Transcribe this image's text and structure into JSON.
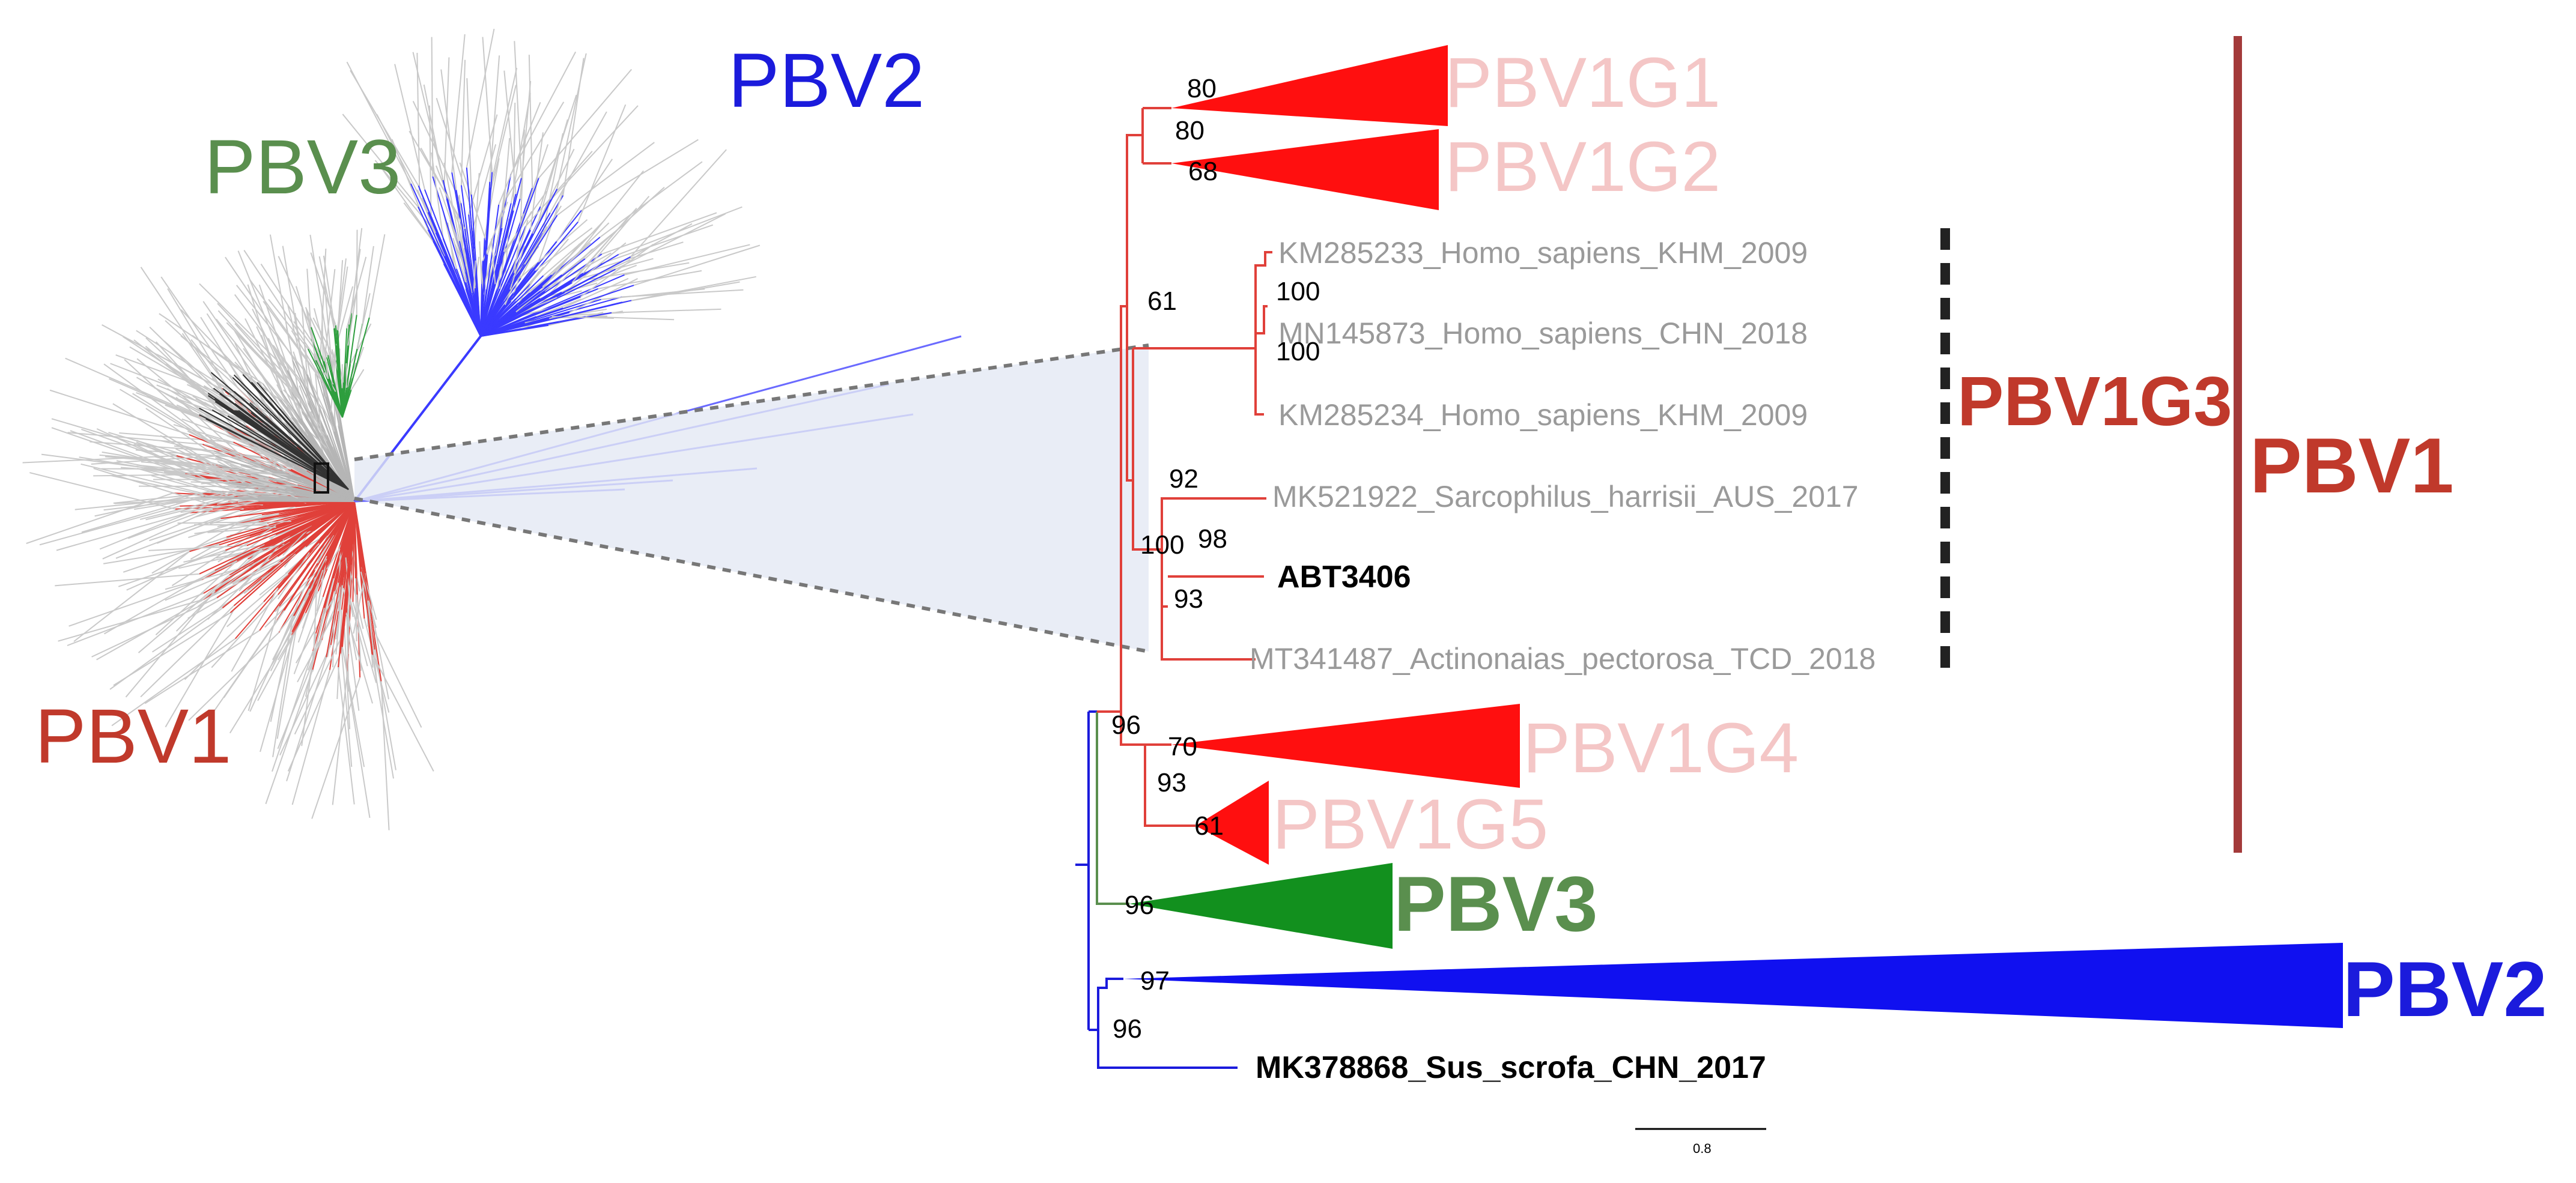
{
  "colors": {
    "pbv1": "#c0392b",
    "pbv1_branch": "#e0403a",
    "pbv2": "#1b1bdc",
    "pbv3": "#5a8f4e",
    "pbv3_fill": "#12901e",
    "pbv1_fill": "#ff0f0f",
    "light_label": "#f4c6c6",
    "grey_tip": "#9a9a9a",
    "black": "#000000"
  },
  "overview": {
    "labels": {
      "pbv1": "PBV1",
      "pbv2": "PBV2",
      "pbv3": "PBV3"
    }
  },
  "tree": {
    "collapsed_clades": {
      "pbv1g1": "PBV1G1",
      "pbv1g2": "PBV1G2",
      "pbv1g4": "PBV1G4",
      "pbv1g5": "PBV1G5",
      "pbv3": "PBV3",
      "pbv2": "PBV2"
    },
    "tips": {
      "km285233": "KM285233_Homo_sapiens_KHM_2009",
      "mn145873": "MN145873_Homo_sapiens_CHN_2018",
      "km285234": "KM285234_Homo_sapiens_KHM_2009",
      "mk521922": "MK521922_Sarcophilus_harrisii_AUS_2017",
      "abt3406": "ABT3406",
      "mt341487": "MT341487_Actinonaias_pectorosa_TCD_2018",
      "mk378868": "MK378868_Sus_scrofa_CHN_2017"
    },
    "support": {
      "g1": "80",
      "g1g2": "80",
      "g2": "68",
      "n61": "61",
      "n100a": "100",
      "n100b": "100",
      "n92": "92",
      "n100c": "100",
      "n98": "98",
      "n93a": "93",
      "n96a": "96",
      "g4": "70",
      "n93b": "93",
      "g5": "61",
      "pbv3": "96",
      "pbv2": "97",
      "n96b": "96"
    },
    "group_labels": {
      "pbv1g3": "PBV1G3",
      "pbv1": "PBV1"
    },
    "scale_bar": "0.8"
  }
}
